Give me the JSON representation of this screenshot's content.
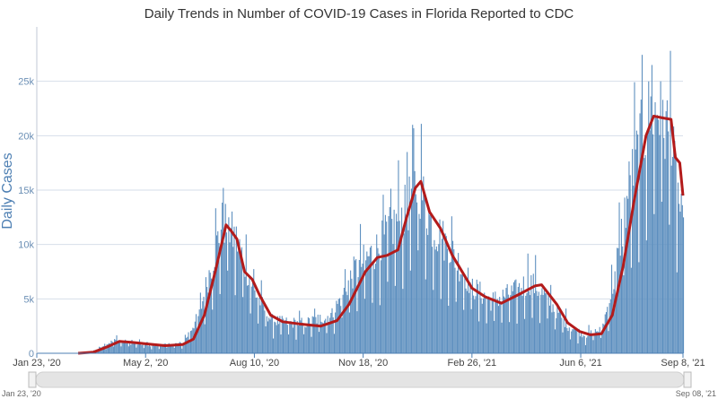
{
  "chart_data": {
    "type": "bar",
    "title": "Daily Trends in Number of COVID-19 Cases in Florida Reported to CDC",
    "xlabel": "",
    "ylabel": "Daily Cases",
    "x_range": [
      "2020-01-23",
      "2021-09-08"
    ],
    "ylim": [
      0,
      30000
    ],
    "y_ticks": [
      {
        "value": 0,
        "label": "0"
      },
      {
        "value": 5000,
        "label": "5k"
      },
      {
        "value": 10000,
        "label": "10k"
      },
      {
        "value": 15000,
        "label": "15k"
      },
      {
        "value": 20000,
        "label": "20k"
      },
      {
        "value": 25000,
        "label": "25k"
      }
    ],
    "x_ticks": [
      {
        "date": "2020-01-23",
        "label": "Jan 23, '20"
      },
      {
        "date": "2020-05-02",
        "label": "May 2, '20"
      },
      {
        "date": "2020-08-10",
        "label": "Aug 10, '20"
      },
      {
        "date": "2020-11-18",
        "label": "Nov 18, '20"
      },
      {
        "date": "2021-02-26",
        "label": "Feb 26, '21"
      },
      {
        "date": "2021-06-06",
        "label": "Jun 6, '21"
      },
      {
        "date": "2021-09-08",
        "label": "Sep 8, '21"
      }
    ],
    "grid": true,
    "colors": {
      "bars": "#5d8fbf",
      "average_line": "#b31b1b",
      "grid": "#d6dee9",
      "axis": "#4d7fb3"
    },
    "series": [
      {
        "kind": "bars",
        "anchors": [
          [
            "2020-01-23",
            0
          ],
          [
            "2020-03-01",
            0
          ],
          [
            "2020-03-15",
            200
          ],
          [
            "2020-03-25",
            800
          ],
          [
            "2020-04-05",
            1200
          ],
          [
            "2020-04-20",
            900
          ],
          [
            "2020-05-10",
            700
          ],
          [
            "2020-06-05",
            900
          ],
          [
            "2020-06-20",
            3500
          ],
          [
            "2020-07-01",
            8000
          ],
          [
            "2020-07-12",
            12000
          ],
          [
            "2020-07-25",
            10000
          ],
          [
            "2020-08-10",
            5500
          ],
          [
            "2020-08-25",
            3000
          ],
          [
            "2020-09-05",
            2800
          ],
          [
            "2020-09-25",
            2700
          ],
          [
            "2020-10-20",
            3500
          ],
          [
            "2020-11-10",
            7500
          ],
          [
            "2020-12-01",
            9500
          ],
          [
            "2020-12-15",
            11500
          ],
          [
            "2020-12-25",
            12500
          ],
          [
            "2021-01-07",
            15500
          ],
          [
            "2021-01-20",
            11500
          ],
          [
            "2021-02-05",
            9500
          ],
          [
            "2021-02-26",
            6000
          ],
          [
            "2021-03-15",
            4700
          ],
          [
            "2021-04-05",
            5500
          ],
          [
            "2021-04-20",
            6500
          ],
          [
            "2021-05-05",
            5000
          ],
          [
            "2021-05-25",
            2500
          ],
          [
            "2021-06-10",
            1600
          ],
          [
            "2021-06-25",
            2200
          ],
          [
            "2021-07-05",
            6000
          ],
          [
            "2021-07-20",
            15000
          ],
          [
            "2021-08-05",
            21000
          ],
          [
            "2021-08-15",
            22000
          ],
          [
            "2021-08-25",
            20000
          ],
          [
            "2021-09-01",
            16000
          ],
          [
            "2021-09-08",
            10500
          ]
        ],
        "peaks": [
          [
            "2020-07-12",
            15200
          ],
          [
            "2020-07-17",
            12500
          ],
          [
            "2021-01-02",
            21000
          ],
          [
            "2020-12-28",
            18500
          ],
          [
            "2021-08-27",
            27800
          ],
          [
            "2021-08-10",
            26500
          ],
          [
            "2021-08-18",
            25000
          ]
        ]
      },
      {
        "kind": "line",
        "points": [
          [
            "2020-03-01",
            0
          ],
          [
            "2020-03-15",
            100
          ],
          [
            "2020-03-28",
            600
          ],
          [
            "2020-04-08",
            1100
          ],
          [
            "2020-04-20",
            1000
          ],
          [
            "2020-05-05",
            850
          ],
          [
            "2020-05-20",
            700
          ],
          [
            "2020-06-05",
            800
          ],
          [
            "2020-06-15",
            1300
          ],
          [
            "2020-06-25",
            3500
          ],
          [
            "2020-07-05",
            7500
          ],
          [
            "2020-07-15",
            11800
          ],
          [
            "2020-07-20",
            11200
          ],
          [
            "2020-07-25",
            10500
          ],
          [
            "2020-08-01",
            7500
          ],
          [
            "2020-08-08",
            6800
          ],
          [
            "2020-08-15",
            5300
          ],
          [
            "2020-08-25",
            3500
          ],
          [
            "2020-09-05",
            2900
          ],
          [
            "2020-09-20",
            2700
          ],
          [
            "2020-10-10",
            2500
          ],
          [
            "2020-10-25",
            3000
          ],
          [
            "2020-11-05",
            4500
          ],
          [
            "2020-11-20",
            7500
          ],
          [
            "2020-12-01",
            8800
          ],
          [
            "2020-12-10",
            9000
          ],
          [
            "2020-12-20",
            9500
          ],
          [
            "2020-12-28",
            12500
          ],
          [
            "2021-01-05",
            15200
          ],
          [
            "2021-01-10",
            15800
          ],
          [
            "2021-01-18",
            13000
          ],
          [
            "2021-01-28",
            11500
          ],
          [
            "2021-02-08",
            9000
          ],
          [
            "2021-02-26",
            6000
          ],
          [
            "2021-03-10",
            5200
          ],
          [
            "2021-03-25",
            4600
          ],
          [
            "2021-04-10",
            5400
          ],
          [
            "2021-04-25",
            6200
          ],
          [
            "2021-05-01",
            6300
          ],
          [
            "2021-05-15",
            4500
          ],
          [
            "2021-05-25",
            2800
          ],
          [
            "2021-06-05",
            2000
          ],
          [
            "2021-06-15",
            1700
          ],
          [
            "2021-06-25",
            1800
          ],
          [
            "2021-07-05",
            3500
          ],
          [
            "2021-07-15",
            8000
          ],
          [
            "2021-07-25",
            14000
          ],
          [
            "2021-08-05",
            20000
          ],
          [
            "2021-08-12",
            21800
          ],
          [
            "2021-08-22",
            21600
          ],
          [
            "2021-08-28",
            21500
          ],
          [
            "2021-09-01",
            18000
          ],
          [
            "2021-09-05",
            17500
          ],
          [
            "2021-09-08",
            14500
          ]
        ]
      }
    ],
    "navigator": {
      "start_label": "Jan 23, '20",
      "end_label": "Sep 08, '21"
    }
  }
}
